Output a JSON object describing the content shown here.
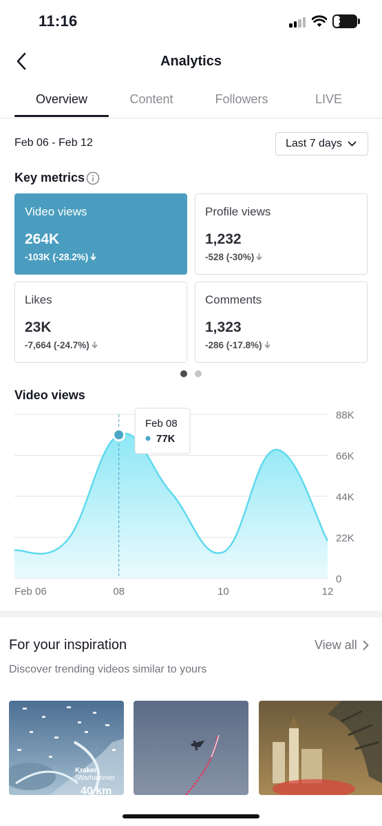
{
  "status_bar": {
    "time": "11:16",
    "battery": "29",
    "battery_level": 0.29
  },
  "header": {
    "title": "Analytics"
  },
  "tabs": [
    {
      "label": "Overview",
      "active": true
    },
    {
      "label": "Content",
      "active": false
    },
    {
      "label": "Followers",
      "active": false
    },
    {
      "label": "LIVE",
      "active": false
    }
  ],
  "date_range": "Feb 06 - Feb 12",
  "period_select": {
    "label": "Last 7 days"
  },
  "key_metrics": {
    "title": "Key metrics",
    "cards": [
      {
        "label": "Video views",
        "value": "264K",
        "delta": "-103K (-28.2%)",
        "selected": true
      },
      {
        "label": "Profile views",
        "value": "1,232",
        "delta": "-528 (-30%)",
        "selected": false
      },
      {
        "label": "Likes",
        "value": "23K",
        "delta": "-7,664 (-24.7%)",
        "selected": false
      },
      {
        "label": "Comments",
        "value": "1,323",
        "delta": "-286 (-17.8%)",
        "selected": false
      }
    ],
    "pages": 2,
    "current_page": 1
  },
  "chart_title": "Video views",
  "chart_data": {
    "type": "area",
    "title": "Video views",
    "x": [
      "Feb 06",
      "Feb 07",
      "Feb 08",
      "Feb 09",
      "Feb 10",
      "Feb 11",
      "Feb 12"
    ],
    "x_tick_labels": [
      "Feb 06",
      "08",
      "10",
      "12"
    ],
    "series": [
      {
        "values": [
          15000,
          20000,
          77000,
          46000,
          14000,
          69000,
          20000
        ]
      }
    ],
    "y_tick_labels": [
      "88K",
      "66K",
      "44K",
      "22K",
      "0"
    ],
    "ylim": [
      0,
      88000
    ],
    "grid": true,
    "color": "#5fd9ee",
    "tooltip": {
      "date": "Feb 08",
      "value": "77K",
      "index": 2
    }
  },
  "inspiration": {
    "title": "For your inspiration",
    "view_all": "View all",
    "subtitle": "Discover trending videos similar to yours",
    "thumbnails": [
      {
        "caption": "Kraken\n(Warhammer",
        "badge": "40 km"
      },
      {
        "caption": ""
      },
      {
        "caption": ""
      }
    ]
  }
}
